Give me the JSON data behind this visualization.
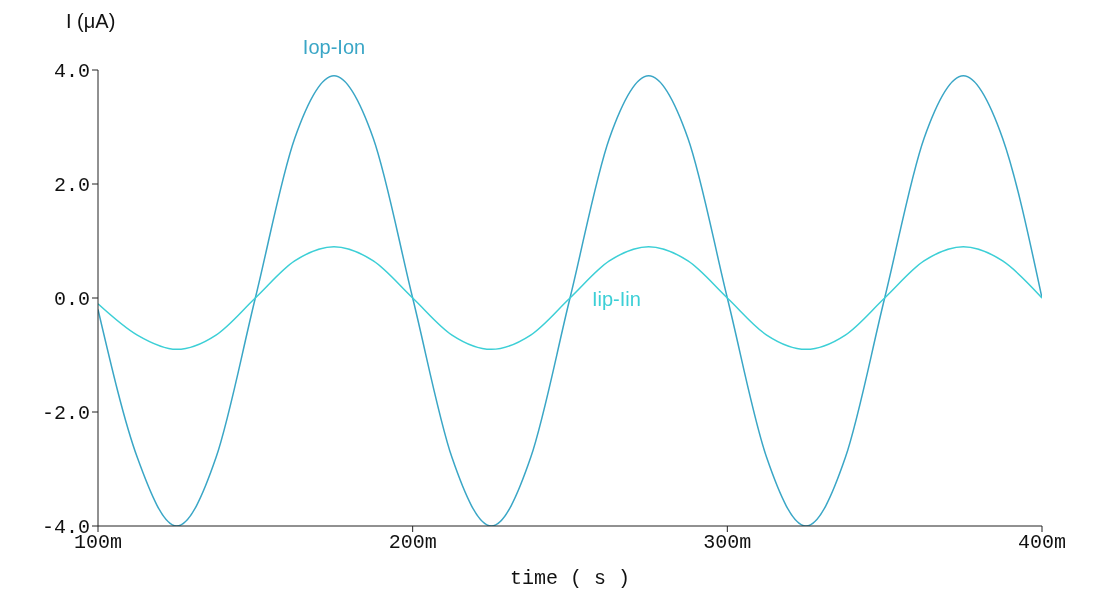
{
  "chart_data": {
    "type": "line",
    "xlabel": "time ( s )",
    "ylabel": "I (μA)",
    "x": [
      100,
      112.5,
      125,
      137.5,
      150,
      162.5,
      175,
      187.5,
      200,
      212.5,
      225,
      237.5,
      250,
      262.5,
      275,
      287.5,
      300,
      312.5,
      325,
      337.5,
      350,
      362.5,
      375,
      387.5,
      400
    ],
    "series": [
      {
        "name": "Iop-Ion",
        "color": "#3aa6c6",
        "values": [
          -0.2,
          -2.8,
          -4.0,
          -2.8,
          0,
          2.8,
          3.9,
          2.8,
          0,
          -2.8,
          -4.0,
          -2.8,
          0,
          2.8,
          3.9,
          2.8,
          0,
          -2.8,
          -4.0,
          -2.8,
          0,
          2.8,
          3.9,
          2.8,
          0
        ]
      },
      {
        "name": "Iip-Iin",
        "color": "#3ccfd6",
        "values": [
          -0.1,
          -0.65,
          -0.9,
          -0.65,
          0,
          0.65,
          0.9,
          0.65,
          0,
          -0.65,
          -0.9,
          -0.65,
          0,
          0.65,
          0.9,
          0.65,
          0,
          -0.65,
          -0.9,
          -0.65,
          0,
          0.65,
          0.9,
          0.65,
          0
        ]
      }
    ],
    "xlim": [
      100,
      400
    ],
    "xticks": [
      {
        "value": 100,
        "label": "100m"
      },
      {
        "value": 200,
        "label": "200m"
      },
      {
        "value": 300,
        "label": "300m"
      },
      {
        "value": 400,
        "label": "400m"
      }
    ],
    "ylim": [
      -4.0,
      4.0
    ],
    "yticks": [
      {
        "value": -4.0,
        "label": "-4.0"
      },
      {
        "value": -2.0,
        "label": "-2.0"
      },
      {
        "value": 0,
        "label": "0.0"
      },
      {
        "value": 2.0,
        "label": "2.0"
      },
      {
        "value": 4.0,
        "label": "4.0"
      }
    ],
    "grid": false,
    "legend": false,
    "marker": "none",
    "line_style": "solid"
  }
}
